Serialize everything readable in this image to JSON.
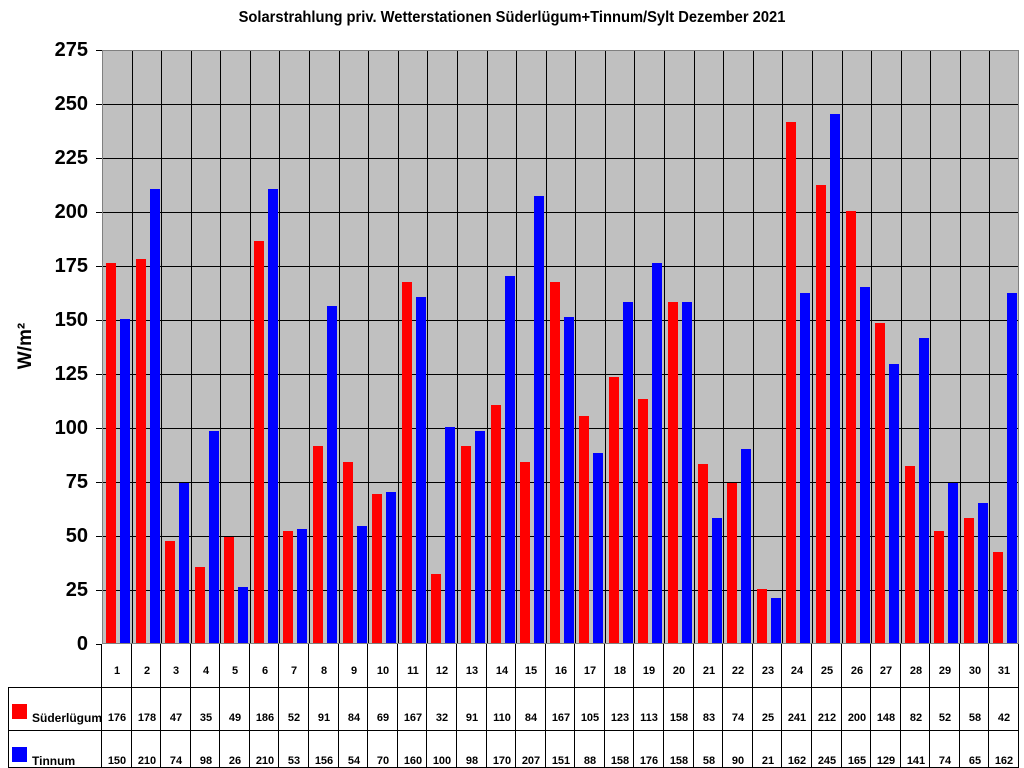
{
  "chart_data": {
    "type": "bar",
    "title": "Solarstrahlung priv. Wetterstationen Süderlügum+Tinnum/Sylt Dezember 2021",
    "xlabel": "",
    "ylabel": "W/m²",
    "ylim": [
      0,
      275
    ],
    "yticks": [
      0,
      25,
      50,
      75,
      100,
      125,
      150,
      175,
      200,
      225,
      250,
      275
    ],
    "grid": true,
    "legend_position": "data-table-left",
    "categories": [
      "1",
      "2",
      "3",
      "4",
      "5",
      "6",
      "7",
      "8",
      "9",
      "10",
      "11",
      "12",
      "13",
      "14",
      "15",
      "16",
      "17",
      "18",
      "19",
      "20",
      "21",
      "22",
      "23",
      "24",
      "25",
      "26",
      "27",
      "28",
      "29",
      "30",
      "31"
    ],
    "series": [
      {
        "name": "Süderlügum",
        "color": "#ff0000",
        "values": [
          176,
          178,
          47,
          35,
          49,
          186,
          52,
          91,
          84,
          69,
          167,
          32,
          91,
          110,
          84,
          167,
          105,
          123,
          113,
          158,
          83,
          74,
          25,
          241,
          212,
          200,
          148,
          82,
          52,
          58,
          42
        ]
      },
      {
        "name": "Tinnum",
        "color": "#0000ff",
        "values": [
          150,
          210,
          74,
          98,
          26,
          210,
          53,
          156,
          54,
          70,
          160,
          100,
          98,
          170,
          207,
          151,
          88,
          158,
          176,
          158,
          58,
          90,
          21,
          162,
          245,
          165,
          129,
          141,
          74,
          65,
          162
        ]
      }
    ]
  },
  "colors": {
    "plot_background": "#c0c0c0",
    "grid": "#000000"
  }
}
